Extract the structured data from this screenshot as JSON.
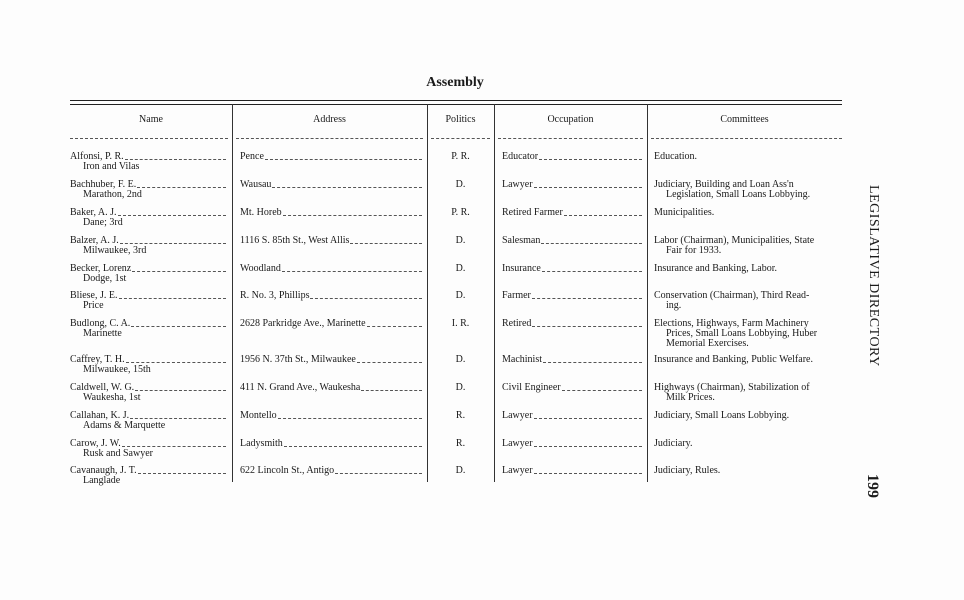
{
  "title": "Assembly",
  "headers": [
    "Name",
    "Address",
    "Politics",
    "Occupation",
    "Committees"
  ],
  "side_title": "LEGISLATIVE DIRECTORY",
  "page_number": "199",
  "rows": [
    {
      "name": "Alfonsi, P. R.",
      "district": "Iron and Vilas",
      "address": "Pence",
      "politics": "P. R.",
      "occupation": "Educator",
      "committees": [
        "Education."
      ]
    },
    {
      "name": "Bachhuber, F. E.",
      "district": "Marathon, 2nd",
      "address": "Wausau",
      "politics": "D.",
      "occupation": "Lawyer",
      "committees": [
        "Judiciary, Building and Loan Ass'n",
        "Legislation, Small Loans Lobbying."
      ]
    },
    {
      "name": "Baker, A. J.",
      "district": "Dane; 3rd",
      "address": "Mt. Horeb",
      "politics": "P. R.",
      "occupation": "Retired Farmer",
      "committees": [
        "Municipalities."
      ]
    },
    {
      "name": "Balzer, A. J.",
      "district": "Milwaukee, 3rd",
      "address": "1116 S. 85th St., West Allis",
      "politics": "D.",
      "occupation": "Salesman",
      "committees": [
        "Labor (Chairman), Municipalities, State",
        "Fair for 1933."
      ]
    },
    {
      "name": "Becker, Lorenz",
      "district": "Dodge, 1st",
      "address": "Woodland",
      "politics": "D.",
      "occupation": "Insurance",
      "committees": [
        "Insurance and Banking, Labor."
      ]
    },
    {
      "name": "Bliese, J. E.",
      "district": "Price",
      "address": "R. No. 3, Phillips",
      "politics": "D.",
      "occupation": "Farmer",
      "committees": [
        "Conservation (Chairman), Third Read-",
        "ing."
      ]
    },
    {
      "name": "Budlong, C. A.",
      "district": "Marinette",
      "address": "2628 Parkridge Ave., Marinette",
      "politics": "I. R.",
      "occupation": "Retired",
      "committees": [
        "Elections, Highways, Farm Machinery",
        "Prices, Small Loans Lobbying, Huber",
        "Memorial Exercises."
      ]
    },
    {
      "name": "Caffrey, T. H.",
      "district": "Milwaukee, 15th",
      "address": "1956 N. 37th St., Milwaukee",
      "politics": "D.",
      "occupation": "Machinist",
      "committees": [
        "Insurance and Banking, Public Welfare."
      ]
    },
    {
      "name": "Caldwell, W. G.",
      "district": "Waukesha, 1st",
      "address": "411 N. Grand Ave., Waukesha",
      "politics": "D.",
      "occupation": "Civil Engineer",
      "committees": [
        "Highways (Chairman), Stabilization of",
        "Milk Prices."
      ]
    },
    {
      "name": "Callahan, K. J.",
      "district": "Adams & Marquette",
      "address": "Montello",
      "politics": "R.",
      "occupation": "Lawyer",
      "committees": [
        "Judiciary, Small Loans Lobbying."
      ]
    },
    {
      "name": "Carow, J. W.",
      "district": "Rusk and Sawyer",
      "address": "Ladysmith",
      "politics": "R.",
      "occupation": "Lawyer",
      "committees": [
        "Judiciary."
      ]
    },
    {
      "name": "Cavanaugh, J. T.",
      "district": "Langlade",
      "address": "622 Lincoln St., Antigo",
      "politics": "D.",
      "occupation": "Lawyer",
      "committees": [
        "Judiciary, Rules."
      ]
    }
  ]
}
